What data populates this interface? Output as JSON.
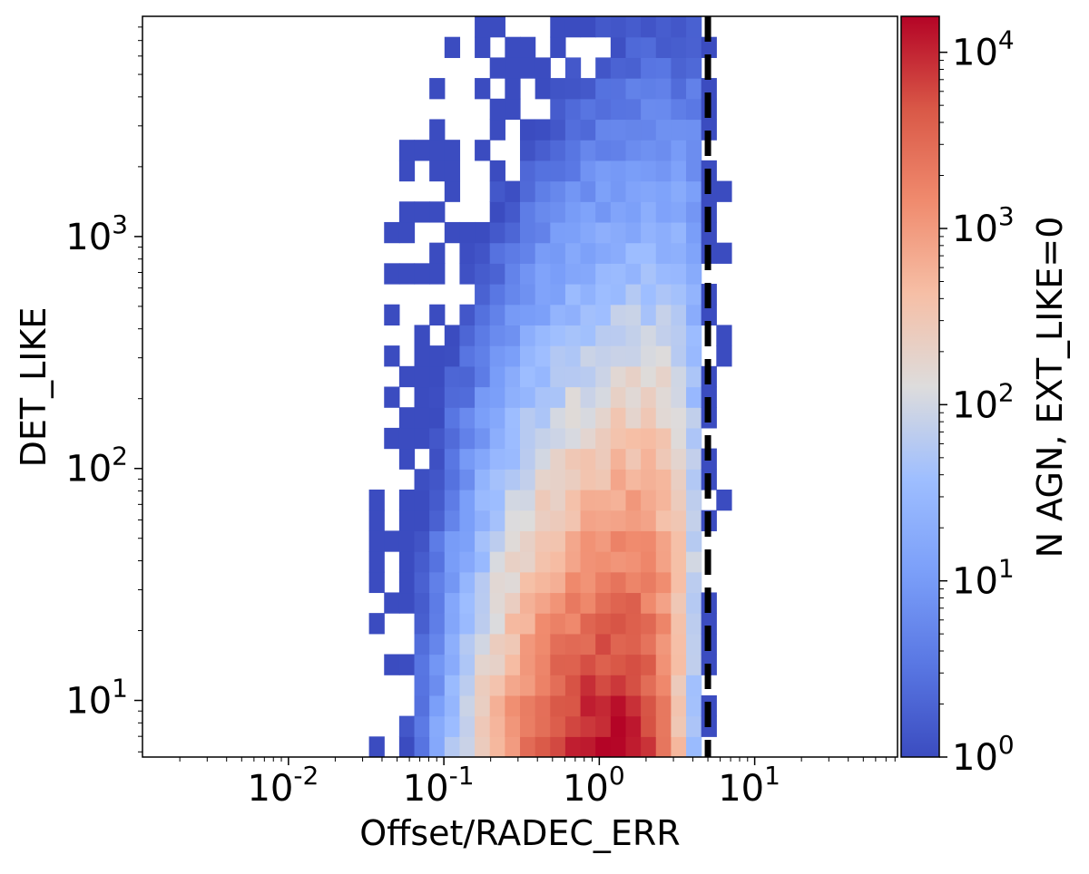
{
  "chart_data": {
    "type": "heatmap",
    "title": "",
    "xlabel": "Offset/RADEC_ERR",
    "ylabel": "DET_LIKE",
    "xscale": "log",
    "yscale": "log",
    "xlim": [
      0.00115,
      83
    ],
    "ylim": [
      5.7,
      8900
    ],
    "xticks": [
      {
        "exp": "-2",
        "value": 0.01
      },
      {
        "exp": "-1",
        "value": 0.1
      },
      {
        "exp": "0",
        "value": 1
      },
      {
        "exp": "1",
        "value": 10
      }
    ],
    "yticks": [
      {
        "exp": "1",
        "value": 10
      },
      {
        "exp": "2",
        "value": 100
      },
      {
        "exp": "3",
        "value": 1000
      }
    ],
    "colormap": "coolwarm",
    "colorbar": {
      "label": "N AGN, EXT_LIKE=0",
      "scale": "log",
      "range": [
        1,
        16000
      ],
      "ticks": [
        {
          "exp": "0",
          "value": 1
        },
        {
          "exp": "1",
          "value": 10
        },
        {
          "exp": "2",
          "value": 100
        },
        {
          "exp": "3",
          "value": 1000
        },
        {
          "exp": "4",
          "value": 10000
        }
      ]
    },
    "cutoff_line": {
      "x": 5,
      "style": "dashed",
      "color": "#000000"
    },
    "bins": {
      "nx": 50,
      "ny": 36
    },
    "density_model": {
      "description": "approximate 2D histogram of AGN counts in log-offset vs log-DET_LIKE space",
      "peak": {
        "x": 1.35,
        "y": 7.2,
        "count": 15000
      },
      "cutoff_x": 5
    }
  }
}
